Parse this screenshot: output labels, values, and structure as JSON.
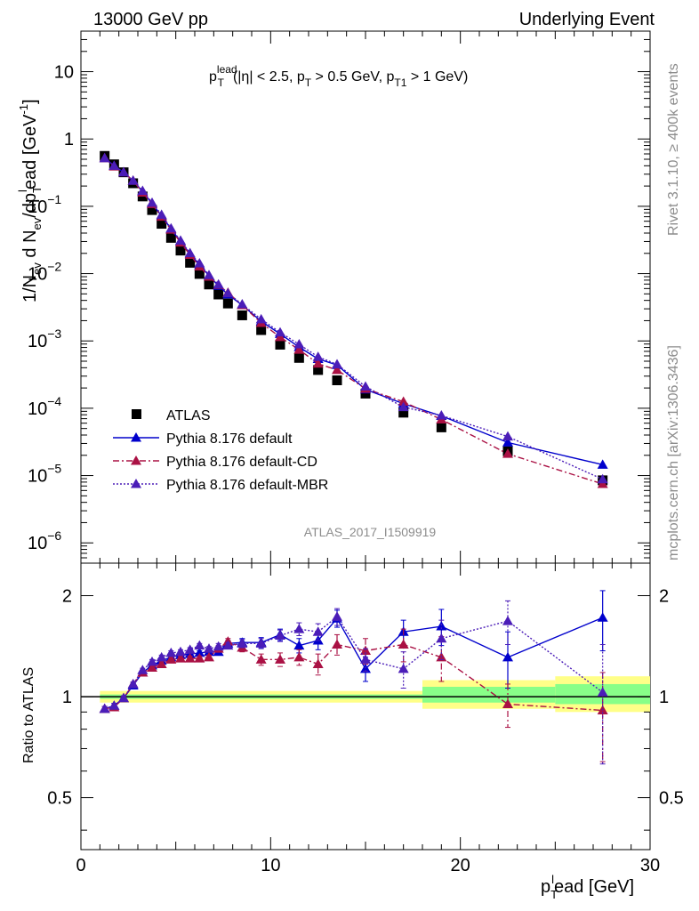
{
  "header": {
    "left": "13000 GeV pp",
    "right": "Underlying Event"
  },
  "selection": {
    "p": "p",
    "T": "T",
    "lead": "lead",
    "rest1": "(|η| < 2.5, p",
    "T2": "T",
    "rest2": " > 0.5 GeV, p",
    "T1": "T1",
    "rest3": " > 1 GeV)"
  },
  "side_text": {
    "rivet": "Rivet 3.1.10, ≥ 400k events",
    "mcplots": "mcplots.cern.ch [arXiv:1306.3436]"
  },
  "analysis_id": "ATLAS_2017_I1509919",
  "ylabel_top": {
    "p1": "1/N",
    "sub_ev1": "ev",
    "p2": " d N",
    "sub_ev2": "ev",
    "p3": "/dp",
    "sub_T": "T",
    "sup_l": "l",
    "p4": "ead [GeV",
    "sup_m1": "-1",
    "p5": "]"
  },
  "ylabel_bottom": "Ratio to ATLAS",
  "xlabel": {
    "p": "p",
    "sub_T": "T",
    "sup_l": "l",
    "rest": "ead [GeV]"
  },
  "colors": {
    "data": "#000000",
    "default": "#0000cc",
    "cd": "#aa1144",
    "mbr": "#4b1db8",
    "band_outer": "#ffff88",
    "band_inner": "#88ff88"
  },
  "chart_data": [
    {
      "type": "scatter",
      "title": "",
      "ylog": true,
      "ylim": [
        5e-07,
        40
      ],
      "xlim": [
        0,
        30
      ],
      "legend_position": "bottom-left",
      "yticks": [
        {
          "value": 1e-06,
          "label": "10",
          "exp": "−6"
        },
        {
          "value": 1e-05,
          "label": "10",
          "exp": "−5"
        },
        {
          "value": 0.0001,
          "label": "10",
          "exp": "−4"
        },
        {
          "value": 0.001,
          "label": "10",
          "exp": "−3"
        },
        {
          "value": 0.01,
          "label": "10",
          "exp": "−2"
        },
        {
          "value": 0.1,
          "label": "10",
          "exp": "−1"
        },
        {
          "value": 1,
          "label": "1",
          "exp": ""
        },
        {
          "value": 10,
          "label": "10",
          "exp": ""
        }
      ],
      "series": [
        {
          "name": "ATLAS",
          "style": "data",
          "x": [
            1.25,
            1.75,
            2.25,
            2.75,
            3.25,
            3.75,
            4.25,
            4.75,
            5.25,
            5.75,
            6.25,
            6.75,
            7.25,
            7.75,
            8.5,
            9.5,
            10.5,
            11.5,
            12.5,
            13.5,
            15.0,
            17.0,
            19.0,
            22.5,
            27.5
          ],
          "y": [
            0.56,
            0.42,
            0.32,
            0.22,
            0.14,
            0.088,
            0.055,
            0.034,
            0.022,
            0.0145,
            0.0099,
            0.0069,
            0.0049,
            0.0036,
            0.0024,
            0.00145,
            0.00088,
            0.00056,
            0.00037,
            0.00026,
            0.000165,
            8.6e-05,
            5.2e-05,
            2.3e-05,
            8.5e-06
          ]
        },
        {
          "name": "Pythia 8.176 default",
          "style": "solid",
          "x": [
            1.25,
            1.75,
            2.25,
            2.75,
            3.25,
            3.75,
            4.25,
            4.75,
            5.25,
            5.75,
            6.25,
            6.75,
            7.25,
            7.75,
            8.5,
            9.5,
            10.5,
            11.5,
            12.5,
            13.5,
            15.0,
            17.0,
            19.0,
            22.5,
            27.5
          ],
          "y": [
            0.52,
            0.4,
            0.32,
            0.24,
            0.165,
            0.11,
            0.072,
            0.046,
            0.03,
            0.0197,
            0.0135,
            0.0093,
            0.0066,
            0.0049,
            0.0034,
            0.00196,
            0.00127,
            0.00081,
            0.00054,
            0.00044,
            0.00019,
            0.000117,
            7.7e-05,
            3.1e-05,
            1.45e-05
          ]
        },
        {
          "name": "Pythia 8.176 default-CD",
          "style": "dashdot",
          "x": [
            1.25,
            1.75,
            2.25,
            2.75,
            3.25,
            3.75,
            4.25,
            4.75,
            5.25,
            5.75,
            6.25,
            6.75,
            7.25,
            7.75,
            8.5,
            9.5,
            10.5,
            11.5,
            12.5,
            13.5,
            15.0,
            17.0,
            19.0,
            22.5,
            27.5
          ],
          "y": [
            0.52,
            0.39,
            0.32,
            0.24,
            0.16,
            0.108,
            0.07,
            0.045,
            0.029,
            0.019,
            0.0128,
            0.009,
            0.0068,
            0.0052,
            0.0034,
            0.00185,
            0.00114,
            0.00074,
            0.00046,
            0.00037,
            0.000195,
            0.000125,
            6.8e-05,
            2.1e-05,
            7.5e-06
          ]
        },
        {
          "name": "Pythia 8.176 default-MBR",
          "style": "dotted",
          "x": [
            1.25,
            1.75,
            2.25,
            2.75,
            3.25,
            3.75,
            4.25,
            4.75,
            5.25,
            5.75,
            6.25,
            6.75,
            7.25,
            7.75,
            8.5,
            9.5,
            10.5,
            11.5,
            12.5,
            13.5,
            15.0,
            17.0,
            19.0,
            22.5,
            27.5
          ],
          "y": [
            0.52,
            0.4,
            0.32,
            0.24,
            0.17,
            0.113,
            0.075,
            0.047,
            0.031,
            0.0202,
            0.0142,
            0.0095,
            0.0069,
            0.0051,
            0.0035,
            0.0021,
            0.00134,
            0.00089,
            0.00058,
            0.00045,
            0.00021,
            0.000104,
            7.8e-05,
            3.8e-05,
            8.8e-06
          ]
        }
      ]
    },
    {
      "type": "scatter",
      "title": "",
      "ylabel": "Ratio to ATLAS",
      "ylog": true,
      "ylim": [
        0.35,
        2.5
      ],
      "xlim": [
        0,
        30
      ],
      "xticks": [
        0,
        10,
        20,
        30
      ],
      "yticks": [
        0.5,
        1,
        2
      ],
      "bands": [
        {
          "x0": 1.0,
          "x1": 18.0,
          "outer": [
            0.96,
            1.04
          ],
          "inner": [
            0.985,
            1.015
          ]
        },
        {
          "x0": 18.0,
          "x1": 25.0,
          "outer": [
            0.92,
            1.12
          ],
          "inner": [
            0.96,
            1.07
          ]
        },
        {
          "x0": 25.0,
          "x1": 30.0,
          "outer": [
            0.9,
            1.15
          ],
          "inner": [
            0.95,
            1.09
          ]
        }
      ],
      "series": [
        {
          "name": "Pythia 8.176 default",
          "style": "solid",
          "x": [
            1.25,
            1.75,
            2.25,
            2.75,
            3.25,
            3.75,
            4.25,
            4.75,
            5.25,
            5.75,
            6.25,
            6.75,
            7.25,
            7.75,
            8.5,
            9.5,
            10.5,
            11.5,
            12.5,
            13.5,
            15.0,
            17.0,
            19.0,
            22.5,
            27.5
          ],
          "y": [
            0.92,
            0.94,
            0.99,
            1.08,
            1.18,
            1.24,
            1.28,
            1.31,
            1.33,
            1.34,
            1.35,
            1.36,
            1.36,
            1.44,
            1.45,
            1.45,
            1.53,
            1.42,
            1.47,
            1.71,
            1.21,
            1.56,
            1.62,
            1.31,
            1.72
          ],
          "err": [
            0.015,
            0.015,
            0.015,
            0.015,
            0.015,
            0.02,
            0.02,
            0.02,
            0.02,
            0.02,
            0.02,
            0.02,
            0.03,
            0.03,
            0.04,
            0.05,
            0.06,
            0.07,
            0.09,
            0.1,
            0.1,
            0.13,
            0.2,
            0.25,
            0.35
          ]
        },
        {
          "name": "Pythia 8.176 default-CD",
          "style": "dashdot",
          "x": [
            1.25,
            1.75,
            2.25,
            2.75,
            3.25,
            3.75,
            4.25,
            4.75,
            5.25,
            5.75,
            6.25,
            6.75,
            7.25,
            7.75,
            8.5,
            9.5,
            10.5,
            11.5,
            12.5,
            13.5,
            15.0,
            17.0,
            19.0,
            22.5,
            27.5
          ],
          "y": [
            0.92,
            0.93,
            0.99,
            1.09,
            1.18,
            1.22,
            1.25,
            1.29,
            1.3,
            1.3,
            1.3,
            1.31,
            1.39,
            1.46,
            1.4,
            1.29,
            1.29,
            1.31,
            1.25,
            1.43,
            1.37,
            1.43,
            1.31,
            0.95,
            0.91
          ],
          "err": [
            0.015,
            0.015,
            0.015,
            0.015,
            0.015,
            0.02,
            0.02,
            0.02,
            0.02,
            0.02,
            0.02,
            0.02,
            0.03,
            0.03,
            0.04,
            0.05,
            0.06,
            0.07,
            0.09,
            0.1,
            0.12,
            0.16,
            0.2,
            0.14,
            0.27
          ]
        },
        {
          "name": "Pythia 8.176 default-MBR",
          "style": "dotted",
          "x": [
            1.25,
            1.75,
            2.25,
            2.75,
            3.25,
            3.75,
            4.25,
            4.75,
            5.25,
            5.75,
            6.25,
            6.75,
            7.25,
            7.75,
            8.5,
            9.5,
            10.5,
            11.5,
            12.5,
            13.5,
            15.0,
            17.0,
            19.0,
            22.5,
            27.5
          ],
          "y": [
            0.92,
            0.94,
            0.99,
            1.09,
            1.2,
            1.27,
            1.31,
            1.35,
            1.36,
            1.38,
            1.42,
            1.39,
            1.41,
            1.42,
            1.44,
            1.44,
            1.52,
            1.59,
            1.56,
            1.73,
            1.29,
            1.21,
            1.49,
            1.68,
            1.03
          ],
          "err": [
            0.015,
            0.015,
            0.015,
            0.015,
            0.015,
            0.02,
            0.02,
            0.02,
            0.02,
            0.02,
            0.02,
            0.02,
            0.03,
            0.03,
            0.04,
            0.05,
            0.06,
            0.07,
            0.09,
            0.1,
            0.1,
            0.15,
            0.2,
            0.25,
            0.4
          ]
        }
      ]
    }
  ]
}
